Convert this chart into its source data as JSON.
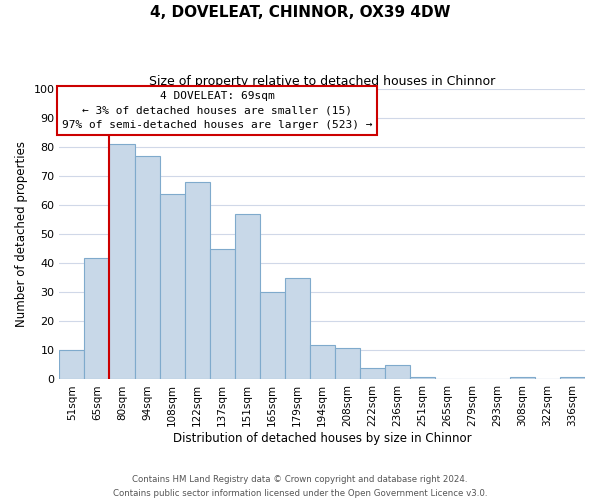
{
  "title": "4, DOVELEAT, CHINNOR, OX39 4DW",
  "subtitle": "Size of property relative to detached houses in Chinnor",
  "xlabel": "Distribution of detached houses by size in Chinnor",
  "ylabel": "Number of detached properties",
  "categories": [
    "51sqm",
    "65sqm",
    "80sqm",
    "94sqm",
    "108sqm",
    "122sqm",
    "137sqm",
    "151sqm",
    "165sqm",
    "179sqm",
    "194sqm",
    "208sqm",
    "222sqm",
    "236sqm",
    "251sqm",
    "265sqm",
    "279sqm",
    "293sqm",
    "308sqm",
    "322sqm",
    "336sqm"
  ],
  "values": [
    10,
    42,
    81,
    77,
    64,
    68,
    45,
    57,
    30,
    35,
    12,
    11,
    4,
    5,
    1,
    0,
    0,
    0,
    1,
    0,
    1
  ],
  "bar_color": "#c8d8e8",
  "bar_edge_color": "#7faacc",
  "ylim": [
    0,
    100
  ],
  "yticks": [
    0,
    10,
    20,
    30,
    40,
    50,
    60,
    70,
    80,
    90,
    100
  ],
  "annotation_line_color": "#cc0000",
  "annotation_box_text": "4 DOVELEAT: 69sqm\n← 3% of detached houses are smaller (15)\n97% of semi-detached houses are larger (523) →",
  "footer_line1": "Contains HM Land Registry data © Crown copyright and database right 2024.",
  "footer_line2": "Contains public sector information licensed under the Open Government Licence v3.0.",
  "background_color": "#ffffff",
  "grid_color": "#d0d8e8"
}
